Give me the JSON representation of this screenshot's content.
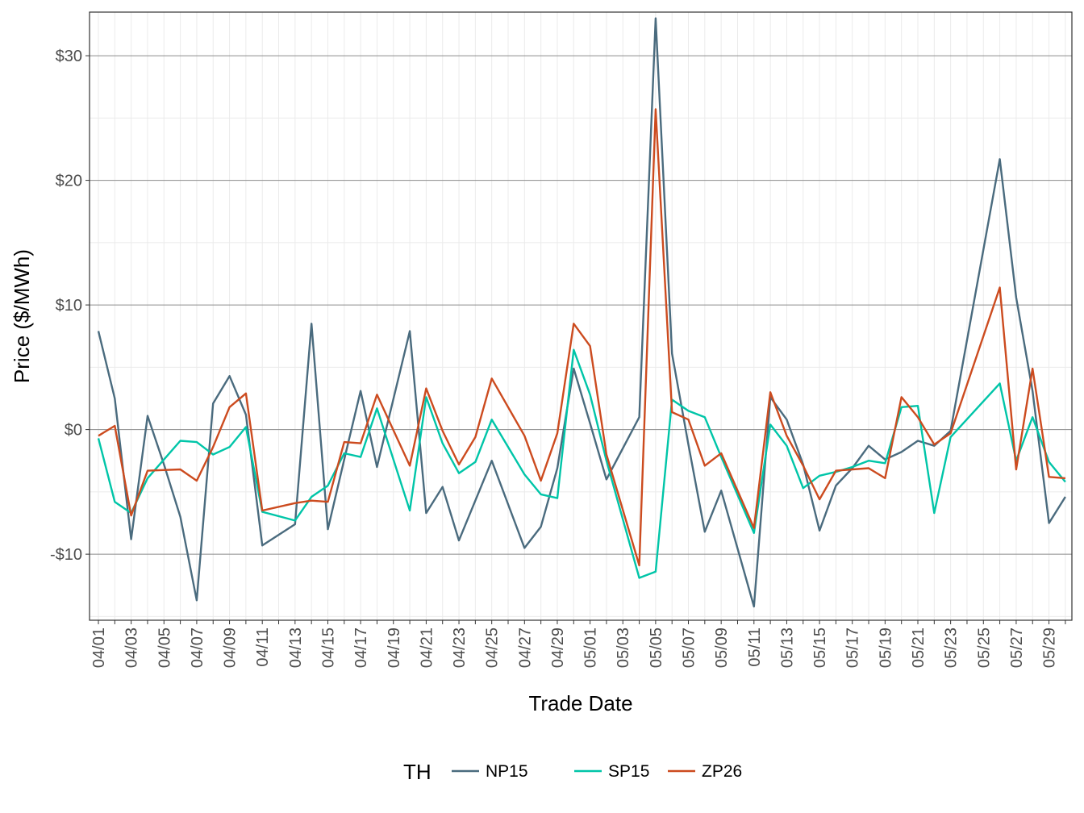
{
  "chart_data": {
    "type": "line",
    "xlabel": "Trade Date",
    "ylabel": "Price ($/MWh)",
    "ylim": [
      -15.3,
      33.5
    ],
    "y_ticks": [
      -10,
      0,
      10,
      20,
      30
    ],
    "y_tick_labels": [
      "-$10",
      "$0",
      "$10",
      "$20",
      "$30"
    ],
    "x_tick_labels": [
      "04/01",
      "04/03",
      "04/05",
      "04/07",
      "04/09",
      "04/11",
      "04/13",
      "04/15",
      "04/17",
      "04/19",
      "04/21",
      "04/23",
      "04/25",
      "04/27",
      "04/29",
      "05/01",
      "05/03",
      "05/05",
      "05/07",
      "05/09",
      "05/11",
      "05/13",
      "05/15",
      "05/17",
      "05/19",
      "05/21",
      "05/23",
      "05/25",
      "05/27",
      "05/29"
    ],
    "legend_title": "TH",
    "legend_position": "bottom",
    "grid": true,
    "series": [
      {
        "name": "NP15",
        "color": "#4a6b7e",
        "points": [
          [
            "04/01",
            7.9
          ],
          [
            "04/02",
            2.5
          ],
          [
            "04/03",
            -8.8
          ],
          [
            "04/04",
            1.1
          ],
          [
            "04/05",
            -2.8
          ],
          [
            "04/06",
            -7.0
          ],
          [
            "04/07",
            -13.7
          ],
          [
            "04/08",
            2.1
          ],
          [
            "04/09",
            4.3
          ],
          [
            "04/10",
            1.2
          ],
          [
            "04/11",
            -9.3
          ],
          [
            "04/13",
            -7.6
          ],
          [
            "04/14",
            8.5
          ],
          [
            "04/15",
            -8.0
          ],
          [
            "04/16",
            -2.4
          ],
          [
            "04/17",
            3.1
          ],
          [
            "04/18",
            -3.0
          ],
          [
            "04/20",
            7.9
          ],
          [
            "04/21",
            -6.7
          ],
          [
            "04/22",
            -4.6
          ],
          [
            "04/23",
            -8.9
          ],
          [
            "04/25",
            -2.5
          ],
          [
            "04/27",
            -9.5
          ],
          [
            "04/28",
            -7.8
          ],
          [
            "04/29",
            -3.1
          ],
          [
            "04/30",
            4.9
          ],
          [
            "05/01",
            0.5
          ],
          [
            "05/02",
            -4.0
          ],
          [
            "05/04",
            1.0
          ],
          [
            "05/05",
            33.0
          ],
          [
            "05/06",
            6.1
          ],
          [
            "05/07",
            -1.2
          ],
          [
            "05/08",
            -8.2
          ],
          [
            "05/09",
            -4.9
          ],
          [
            "05/11",
            -14.2
          ],
          [
            "05/12",
            2.6
          ],
          [
            "05/13",
            0.8
          ],
          [
            "05/14",
            -2.8
          ],
          [
            "05/15",
            -8.1
          ],
          [
            "05/16",
            -4.5
          ],
          [
            "05/17",
            -3.1
          ],
          [
            "05/18",
            -1.3
          ],
          [
            "05/19",
            -2.4
          ],
          [
            "05/20",
            -1.8
          ],
          [
            "05/21",
            -0.9
          ],
          [
            "05/22",
            -1.3
          ],
          [
            "05/23",
            -0.1
          ],
          [
            "05/26",
            21.7
          ],
          [
            "05/27",
            10.6
          ],
          [
            "05/28",
            3.1
          ],
          [
            "05/29",
            -7.5
          ],
          [
            "05/30",
            -5.4
          ]
        ]
      },
      {
        "name": "SP15",
        "color": "#00c5a8",
        "points": [
          [
            "04/01",
            -0.7
          ],
          [
            "04/02",
            -5.8
          ],
          [
            "04/03",
            -6.7
          ],
          [
            "04/04",
            -3.9
          ],
          [
            "04/05",
            -2.4
          ],
          [
            "04/06",
            -0.9
          ],
          [
            "04/07",
            -1.0
          ],
          [
            "04/08",
            -2.0
          ],
          [
            "04/09",
            -1.4
          ],
          [
            "04/10",
            0.2
          ],
          [
            "04/11",
            -6.6
          ],
          [
            "04/13",
            -7.3
          ],
          [
            "04/14",
            -5.4
          ],
          [
            "04/15",
            -4.5
          ],
          [
            "04/16",
            -1.9
          ],
          [
            "04/17",
            -2.2
          ],
          [
            "04/18",
            1.7
          ],
          [
            "04/20",
            -6.5
          ],
          [
            "04/21",
            2.6
          ],
          [
            "04/22",
            -1.1
          ],
          [
            "04/23",
            -3.5
          ],
          [
            "04/24",
            -2.6
          ],
          [
            "04/25",
            0.8
          ],
          [
            "04/27",
            -3.6
          ],
          [
            "04/28",
            -5.2
          ],
          [
            "04/29",
            -5.5
          ],
          [
            "04/30",
            6.4
          ],
          [
            "05/01",
            2.8
          ],
          [
            "05/02",
            -2.5
          ],
          [
            "05/04",
            -11.9
          ],
          [
            "05/05",
            -11.4
          ],
          [
            "05/06",
            2.4
          ],
          [
            "05/07",
            1.5
          ],
          [
            "05/08",
            1.0
          ],
          [
            "05/09",
            -2.2
          ],
          [
            "05/11",
            -8.3
          ],
          [
            "05/12",
            0.4
          ],
          [
            "05/13",
            -1.3
          ],
          [
            "05/14",
            -4.7
          ],
          [
            "05/15",
            -3.7
          ],
          [
            "05/16",
            -3.4
          ],
          [
            "05/17",
            -3.0
          ],
          [
            "05/18",
            -2.5
          ],
          [
            "05/19",
            -2.7
          ],
          [
            "05/20",
            1.8
          ],
          [
            "05/21",
            1.9
          ],
          [
            "05/22",
            -6.7
          ],
          [
            "05/23",
            -0.6
          ],
          [
            "05/26",
            3.7
          ],
          [
            "05/27",
            -2.5
          ],
          [
            "05/28",
            1.0
          ],
          [
            "05/29",
            -2.6
          ],
          [
            "05/30",
            -4.2
          ]
        ]
      },
      {
        "name": "ZP26",
        "color": "#cc4b1f",
        "points": [
          [
            "04/01",
            -0.5
          ],
          [
            "04/02",
            0.3
          ],
          [
            "04/03",
            -6.9
          ],
          [
            "04/04",
            -3.3
          ],
          [
            "04/06",
            -3.2
          ],
          [
            "04/07",
            -4.1
          ],
          [
            "04/08",
            -1.4
          ],
          [
            "04/09",
            1.8
          ],
          [
            "04/10",
            2.9
          ],
          [
            "04/11",
            -6.5
          ],
          [
            "04/13",
            -5.9
          ],
          [
            "04/14",
            -5.7
          ],
          [
            "04/15",
            -5.8
          ],
          [
            "04/16",
            -1.0
          ],
          [
            "04/17",
            -1.1
          ],
          [
            "04/18",
            2.8
          ],
          [
            "04/20",
            -2.9
          ],
          [
            "04/21",
            3.3
          ],
          [
            "04/22",
            -0.1
          ],
          [
            "04/23",
            -2.8
          ],
          [
            "04/24",
            -0.6
          ],
          [
            "04/25",
            4.1
          ],
          [
            "04/27",
            -0.5
          ],
          [
            "04/28",
            -4.1
          ],
          [
            "04/29",
            -0.3
          ],
          [
            "04/30",
            8.5
          ],
          [
            "05/01",
            6.7
          ],
          [
            "05/02",
            -2.0
          ],
          [
            "05/04",
            -10.9
          ],
          [
            "05/05",
            25.7
          ],
          [
            "05/06",
            1.4
          ],
          [
            "05/07",
            0.8
          ],
          [
            "05/08",
            -2.9
          ],
          [
            "05/09",
            -1.9
          ],
          [
            "05/11",
            -7.9
          ],
          [
            "05/12",
            3.0
          ],
          [
            "05/13",
            -0.5
          ],
          [
            "05/14",
            -2.9
          ],
          [
            "05/15",
            -5.6
          ],
          [
            "05/16",
            -3.3
          ],
          [
            "05/17",
            -3.2
          ],
          [
            "05/18",
            -3.1
          ],
          [
            "05/19",
            -3.9
          ],
          [
            "05/20",
            2.6
          ],
          [
            "05/21",
            1.0
          ],
          [
            "05/22",
            -1.2
          ],
          [
            "05/23",
            -0.3
          ],
          [
            "05/26",
            11.4
          ],
          [
            "05/27",
            -3.2
          ],
          [
            "05/28",
            4.9
          ],
          [
            "05/29",
            -3.8
          ],
          [
            "05/30",
            -3.9
          ]
        ]
      }
    ]
  }
}
